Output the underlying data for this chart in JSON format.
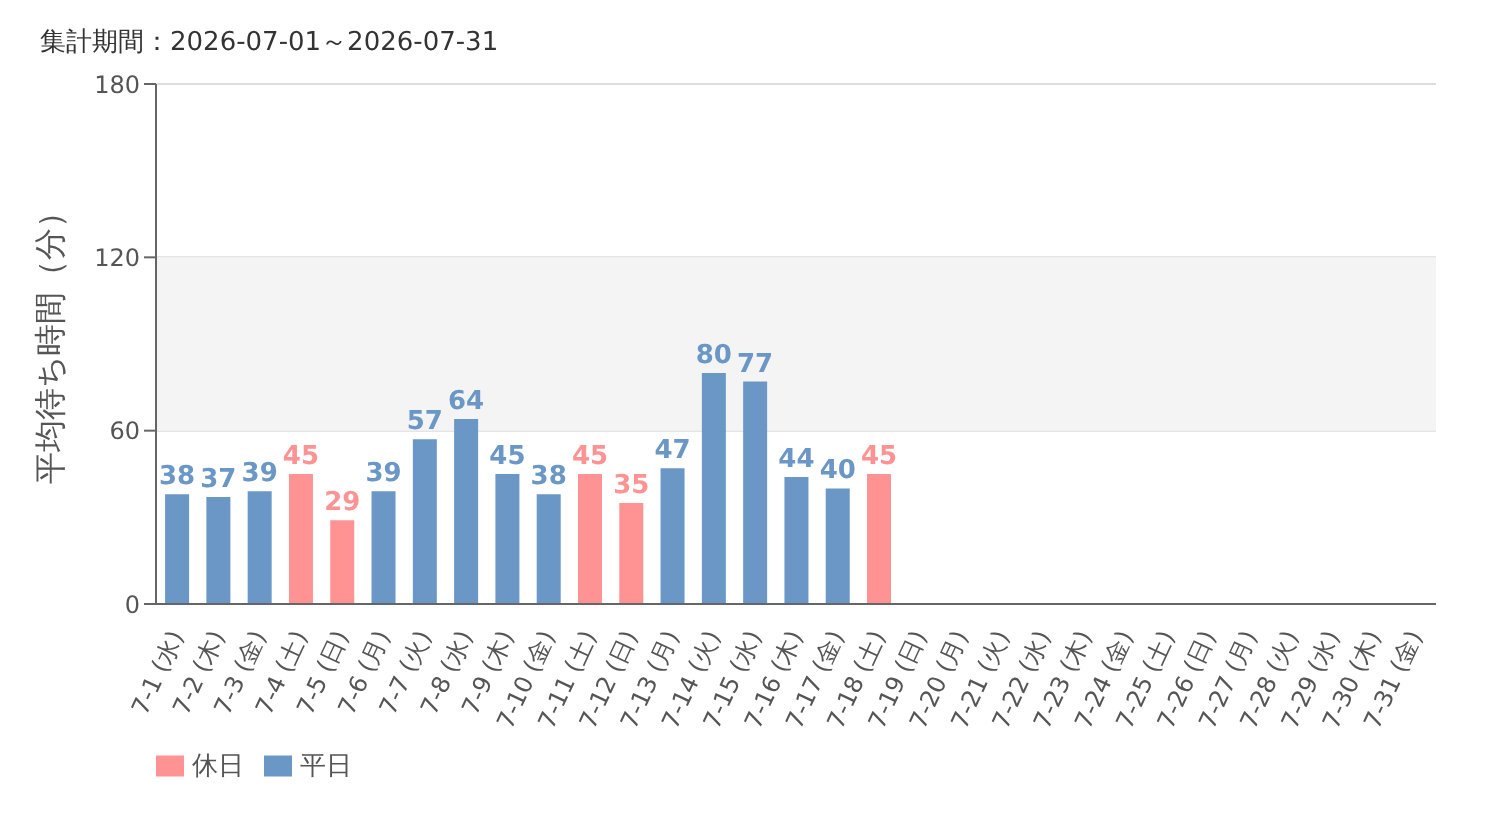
{
  "chart_data": {
    "type": "bar",
    "title": "集計期間：2026-07-01～2026-07-31",
    "ylabel": "平均待ち時間（分）",
    "categories": [
      "7-1 (水)",
      "7-2 (木)",
      "7-3 (金)",
      "7-4 (土)",
      "7-5 (日)",
      "7-6 (月)",
      "7-7 (火)",
      "7-8 (水)",
      "7-9 (木)",
      "7-10 (金)",
      "7-11 (土)",
      "7-12 (日)",
      "7-13 (月)",
      "7-14 (火)",
      "7-15 (水)",
      "7-16 (木)",
      "7-17 (金)",
      "7-18 (土)",
      "7-19 (日)",
      "7-20 (月)",
      "7-21 (火)",
      "7-22 (水)",
      "7-23 (木)",
      "7-24 (金)",
      "7-25 (土)",
      "7-26 (日)",
      "7-27 (月)",
      "7-28 (火)",
      "7-29 (水)",
      "7-30 (木)",
      "7-31 (金)"
    ],
    "series": [
      {
        "name": "平日",
        "color": "#6a97c6",
        "values": [
          38,
          37,
          39,
          null,
          null,
          39,
          57,
          64,
          45,
          38,
          null,
          null,
          47,
          80,
          77,
          44,
          40,
          null,
          null,
          null,
          null,
          null,
          null,
          null,
          null,
          null,
          null,
          null,
          null,
          null,
          null
        ]
      },
      {
        "name": "休日",
        "color": "#ff9393",
        "values": [
          null,
          null,
          null,
          45,
          29,
          null,
          null,
          null,
          null,
          null,
          45,
          35,
          null,
          null,
          null,
          null,
          null,
          45,
          null,
          null,
          null,
          null,
          null,
          null,
          null,
          null,
          null,
          null,
          null,
          null,
          null
        ]
      }
    ],
    "stacked": true,
    "ylim": [
      0,
      180
    ],
    "yticks": [
      0,
      60,
      120,
      180
    ],
    "grid": "y",
    "bands": [
      {
        "axis": "y",
        "from": 60,
        "to": 120,
        "color": "#f4f4f4"
      }
    ],
    "data_labels": true,
    "legend": "bottom left"
  }
}
